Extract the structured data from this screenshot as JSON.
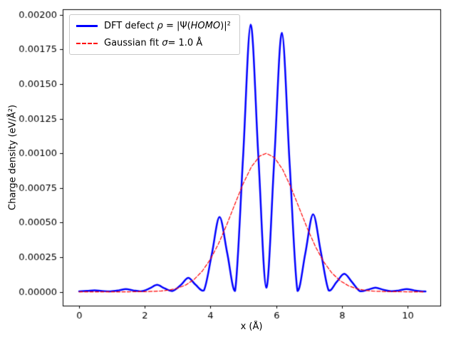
{
  "legend": {
    "dft": {
      "prefix": "DFT defect ",
      "rho": "ρ",
      "mid": " = |Ψ(",
      "homo": "HOMO",
      "sup": ")|²"
    },
    "gauss": {
      "prefix": "Gaussian fit ",
      "sigma": "σ",
      "suffix": "= 1.0 Å"
    }
  },
  "chart_data": {
    "type": "line",
    "title": "",
    "xlabel": "x (Å)",
    "ylabel": "Charge density (eV/Å²)",
    "xlim": [
      -0.5,
      11.0
    ],
    "ylim": [
      -0.0001,
      0.00204
    ],
    "xticks": [
      0,
      2,
      4,
      6,
      8,
      10
    ],
    "xtick_labels": [
      "0",
      "2",
      "4",
      "6",
      "8",
      "10"
    ],
    "yticks": [
      0.0,
      0.00025,
      0.0005,
      0.00075,
      0.001,
      0.00125,
      0.0015,
      0.00175,
      0.002
    ],
    "ytick_labels": [
      "0.00000",
      "0.00025",
      "0.00050",
      "0.00075",
      "0.00100",
      "0.00125",
      "0.00150",
      "0.00175",
      "0.00200"
    ],
    "grid": false,
    "legend_position": "upper left",
    "series": [
      {
        "name": "DFT defect ρ = |Ψ(HOMO)|²",
        "color": "#0000ff",
        "style": "solid",
        "width": 2.5,
        "smooth": "spline",
        "points": [
          [
            0.0,
            3e-06
          ],
          [
            0.25,
            7e-06
          ],
          [
            0.475,
            1e-05
          ],
          [
            0.7,
            6e-06
          ],
          [
            0.95,
            3e-06
          ],
          [
            1.2,
            1e-05
          ],
          [
            1.425,
            2e-05
          ],
          [
            1.65,
            1e-05
          ],
          [
            1.9,
            4e-06
          ],
          [
            2.15,
            2.5e-05
          ],
          [
            2.375,
            5e-05
          ],
          [
            2.6,
            2.5e-05
          ],
          [
            2.85,
            6e-06
          ],
          [
            3.1,
            5e-05
          ],
          [
            3.325,
            0.0001
          ],
          [
            3.55,
            5e-05
          ],
          [
            3.8,
            1e-05
          ],
          [
            4.04,
            0.00027
          ],
          [
            4.275,
            0.00054
          ],
          [
            4.51,
            0.00028
          ],
          [
            4.75,
            6e-06
          ],
          [
            4.99,
            0.00096
          ],
          [
            5.225,
            0.00193
          ],
          [
            5.46,
            0.00097
          ],
          [
            5.7,
            3e-05
          ],
          [
            5.94,
            0.00094
          ],
          [
            6.175,
            0.00187
          ],
          [
            6.41,
            0.00093
          ],
          [
            6.65,
            6e-06
          ],
          [
            6.89,
            0.00028
          ],
          [
            7.125,
            0.00056
          ],
          [
            7.36,
            0.00029
          ],
          [
            7.6,
            1e-05
          ],
          [
            7.84,
            7e-05
          ],
          [
            8.075,
            0.00013
          ],
          [
            8.31,
            7e-05
          ],
          [
            8.55,
            5e-06
          ],
          [
            8.79,
            1.5e-05
          ],
          [
            9.025,
            3e-05
          ],
          [
            9.26,
            1.5e-05
          ],
          [
            9.5,
            4e-06
          ],
          [
            9.74,
            1e-05
          ],
          [
            9.975,
            2e-05
          ],
          [
            10.21,
            1e-05
          ],
          [
            10.45,
            3e-06
          ],
          [
            10.55,
            3e-06
          ]
        ]
      },
      {
        "name": "Gaussian fit σ= 1.0 Å",
        "color": "#ff0000",
        "style": "dashed",
        "width": 1.2,
        "smooth": "poly",
        "gaussian": {
          "amplitude": 0.001,
          "mu": 5.7,
          "sigma": 1.0
        },
        "points": [
          [
            0.0,
            1e-07
          ],
          [
            0.5,
            0.0
          ],
          [
            1.0,
            0.0
          ],
          [
            1.5,
            1e-07
          ],
          [
            2.0,
            1.1e-06
          ],
          [
            2.5,
            6e-06
          ],
          [
            2.75,
            1.29e-05
          ],
          [
            3.0,
            2.61e-05
          ],
          [
            3.25,
            4.97e-05
          ],
          [
            3.5,
            8.89e-05
          ],
          [
            3.75,
            0.0001494
          ],
          [
            4.0,
            0.0002357
          ],
          [
            4.25,
            0.0003496
          ],
          [
            4.5,
            0.0004868
          ],
          [
            4.75,
            0.0006368
          ],
          [
            5.0,
            0.0007827
          ],
          [
            5.25,
            0.0009037
          ],
          [
            5.5,
            0.0009802
          ],
          [
            5.7,
            0.001
          ],
          [
            5.95,
            0.000969
          ],
          [
            6.2,
            0.0008825
          ],
          [
            6.45,
            0.0007548
          ],
          [
            6.7,
            0.0006065
          ],
          [
            6.95,
            0.0004578
          ],
          [
            7.2,
            0.0003247
          ],
          [
            7.45,
            0.0002162
          ],
          [
            7.7,
            0.0001353
          ],
          [
            7.95,
            7.95e-05
          ],
          [
            8.2,
            4.39e-05
          ],
          [
            8.45,
            2.28e-05
          ],
          [
            8.7,
            1.11e-05
          ],
          [
            9.0,
            4.3e-06
          ],
          [
            9.5,
            7e-07
          ],
          [
            10.0,
            1e-07
          ],
          [
            10.5,
            0.0
          ]
        ]
      }
    ]
  }
}
